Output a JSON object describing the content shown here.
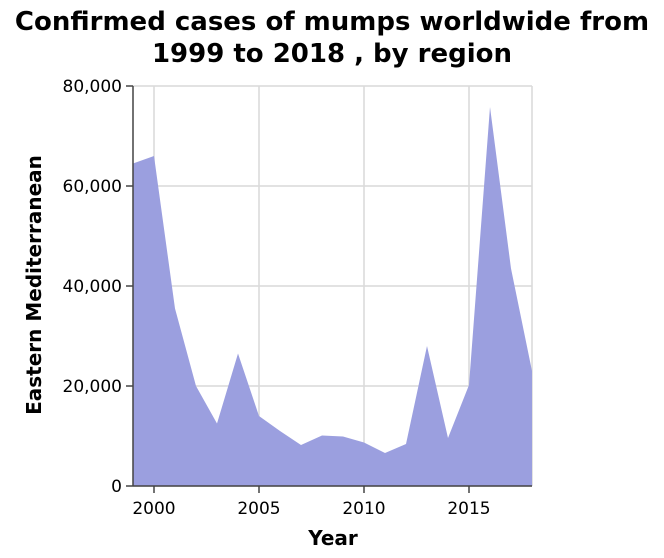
{
  "chart_data": {
    "type": "area",
    "title_line1": "Confirmed cases of mumps worldwide from",
    "title_line2": "1999 to 2018 , by region",
    "xlabel": "Year",
    "ylabel": "Eastern Mediterranean",
    "xlim": [
      1999,
      2018
    ],
    "ylim": [
      0,
      80000
    ],
    "x_ticks": [
      2000,
      2005,
      2010,
      2015
    ],
    "x_tick_labels": [
      "2000",
      "2005",
      "2010",
      "2015"
    ],
    "y_ticks": [
      0,
      20000,
      40000,
      60000,
      80000
    ],
    "y_tick_labels": [
      "0",
      "20,000",
      "40,000",
      "60,000",
      "80,000"
    ],
    "grid": true,
    "fill_color": "#9b9fdf",
    "x": [
      1999,
      2000,
      2001,
      2002,
      2003,
      2004,
      2005,
      2006,
      2007,
      2008,
      2009,
      2010,
      2011,
      2012,
      2013,
      2014,
      2015,
      2016,
      2017,
      2018
    ],
    "values": [
      64500,
      66000,
      35500,
      20000,
      12500,
      26500,
      14000,
      11000,
      8200,
      10100,
      9900,
      8700,
      6600,
      8400,
      28000,
      9600,
      20200,
      75800,
      43500,
      23000
    ]
  }
}
